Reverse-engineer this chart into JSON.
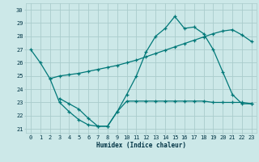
{
  "xlabel": "Humidex (Indice chaleur)",
  "xlim": [
    -0.5,
    23.5
  ],
  "ylim": [
    20.7,
    30.5
  ],
  "yticks": [
    21,
    22,
    23,
    24,
    25,
    26,
    27,
    28,
    29,
    30
  ],
  "xticks": [
    0,
    1,
    2,
    3,
    4,
    5,
    6,
    7,
    8,
    9,
    10,
    11,
    12,
    13,
    14,
    15,
    16,
    17,
    18,
    19,
    20,
    21,
    22,
    23
  ],
  "bg_color": "#cce8e8",
  "grid_color": "#aacccc",
  "line_color": "#007878",
  "line1_x": [
    0,
    1,
    2,
    3,
    4,
    5,
    6,
    7,
    8,
    9,
    10,
    11,
    12,
    13,
    14,
    15,
    16,
    17,
    18,
    19,
    20,
    21,
    22,
    23
  ],
  "line1_y": [
    27.0,
    26.0,
    24.8,
    23.0,
    22.3,
    21.7,
    21.3,
    21.2,
    21.2,
    22.3,
    23.6,
    25.0,
    26.8,
    28.0,
    28.6,
    29.5,
    28.6,
    28.7,
    28.2,
    27.0,
    25.3,
    23.6,
    22.9,
    22.9
  ],
  "line2_x": [
    2,
    3,
    4,
    5,
    6,
    7,
    8,
    9,
    10,
    11,
    12,
    13,
    14,
    15,
    16,
    17,
    18,
    19,
    20,
    21,
    22,
    23
  ],
  "line2_y": [
    24.8,
    25.0,
    25.1,
    25.2,
    25.35,
    25.5,
    25.65,
    25.8,
    26.0,
    26.2,
    26.45,
    26.7,
    26.95,
    27.2,
    27.45,
    27.7,
    27.95,
    28.2,
    28.4,
    28.5,
    28.1,
    27.6
  ],
  "line3_x": [
    3,
    4,
    5,
    6,
    7,
    8,
    9,
    10,
    11,
    12,
    13,
    14,
    15,
    16,
    17,
    18,
    19,
    20,
    21,
    22,
    23
  ],
  "line3_y": [
    23.3,
    22.9,
    22.5,
    21.8,
    21.2,
    21.2,
    22.3,
    23.1,
    23.1,
    23.1,
    23.1,
    23.1,
    23.1,
    23.1,
    23.1,
    23.1,
    23.0,
    23.0,
    23.0,
    23.0,
    22.9
  ]
}
